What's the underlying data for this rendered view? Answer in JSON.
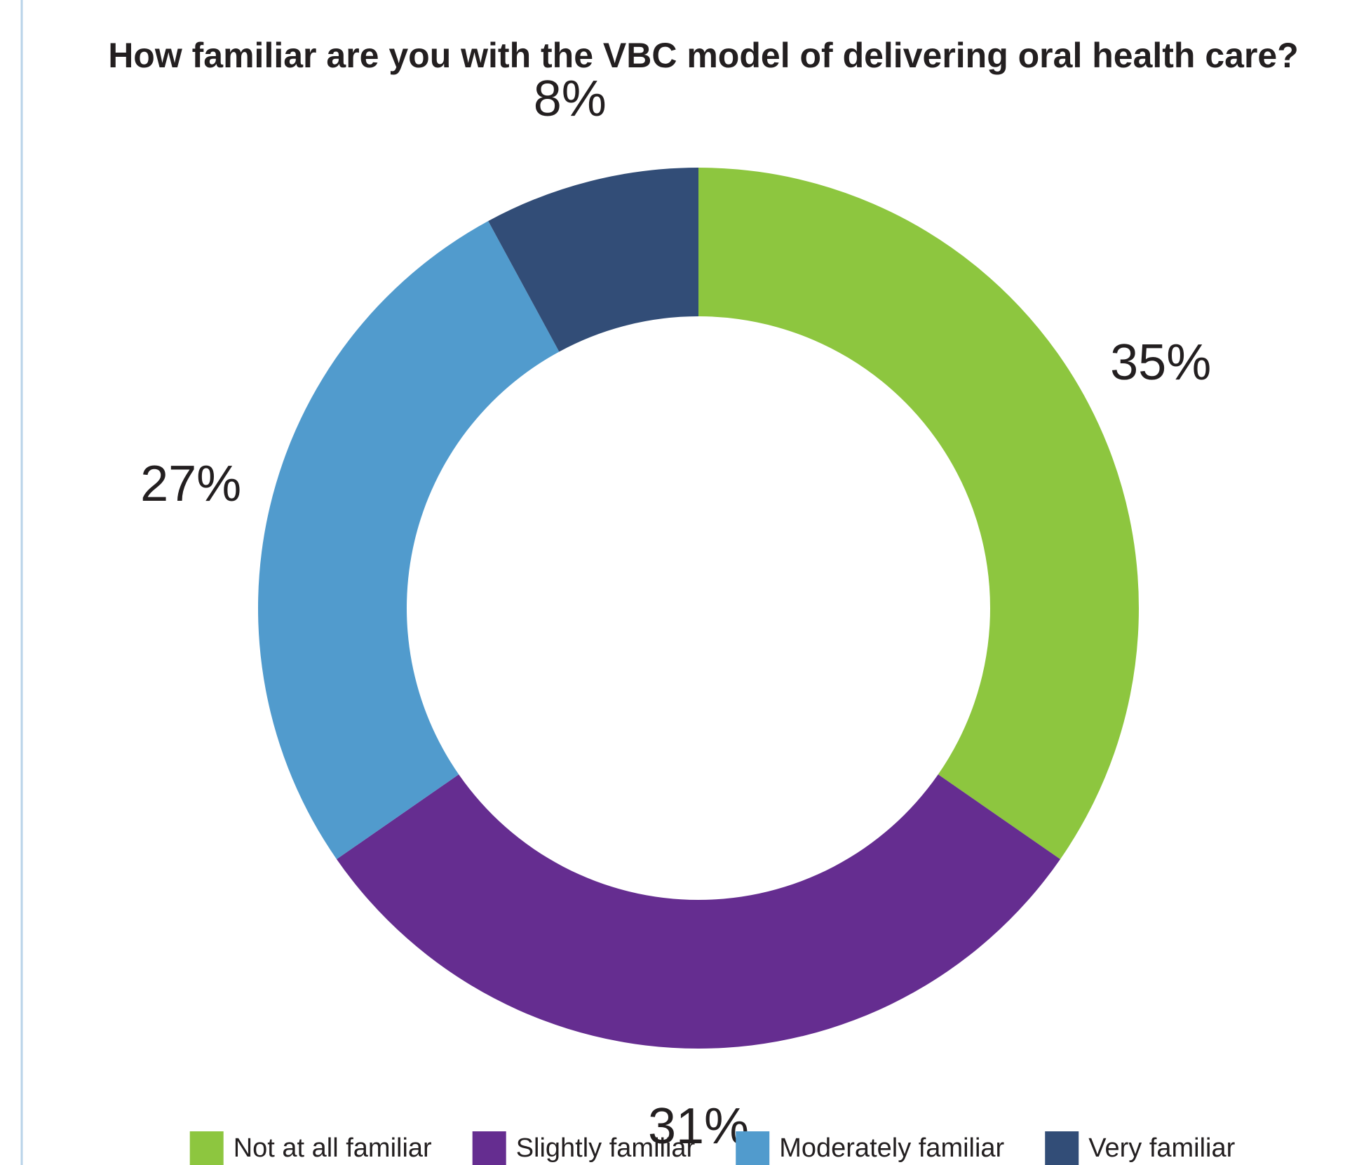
{
  "chart_data": {
    "type": "donut",
    "title": "How familiar are you with the VBC model of delivering oral health care?",
    "categories": [
      "Not at all familiar",
      "Slightly familiar",
      "Moderately familiar",
      "Very familiar"
    ],
    "values": [
      35,
      31,
      27,
      8
    ],
    "value_labels": [
      "35%",
      "31%",
      "27%",
      "8%"
    ],
    "colors": [
      "#8dc63f",
      "#652d90",
      "#519bcd",
      "#324d77"
    ],
    "legend": "bottom"
  }
}
